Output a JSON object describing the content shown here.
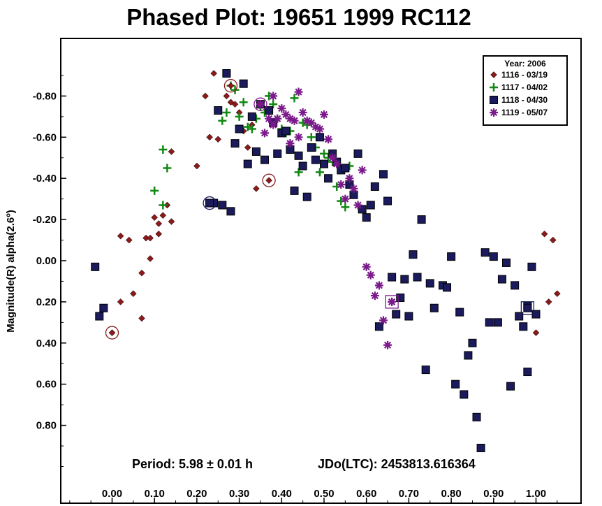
{
  "chart_data": {
    "type": "scatter",
    "title": "Phased Plot: 19651 1999 RC112",
    "xlabel": "",
    "ylabel": "Magnitude(R) alpha(2.6º)",
    "xlim": [
      -0.12,
      1.1
    ],
    "ylim": [
      -1.0,
      1.1
    ],
    "y_inverted": true,
    "grid": false,
    "legend_position": "top-right",
    "x_ticks": [
      0.0,
      0.1,
      0.2,
      0.3,
      0.4,
      0.5,
      0.6,
      0.7,
      0.8,
      0.9,
      1.0
    ],
    "x_tick_labels": [
      "0.00",
      "0.10",
      "0.20",
      "0.30",
      "0.40",
      "0.50",
      "0.60",
      "0.70",
      "0.80",
      "0.90",
      "1.00"
    ],
    "y_ticks": [
      -0.8,
      -0.6,
      -0.4,
      -0.2,
      0.0,
      0.2,
      0.4,
      0.6,
      0.8
    ],
    "y_tick_labels": [
      "-0.80",
      "-0.60",
      "-0.40",
      "-0.20",
      "0.00",
      "0.20",
      "0.40",
      "0.60",
      "0.80"
    ],
    "legend_title": "Year: 2006",
    "annotations": {
      "period": "Period: 5.98 ± 0.01 h",
      "epoch": "JDo(LTC): 2453813.616364"
    },
    "series": [
      {
        "name": "1116 - 03/19",
        "marker": "diamond",
        "color": "#8b1a1a",
        "points": [
          [
            0.0,
            0.35
          ],
          [
            0.02,
            -0.12
          ],
          [
            0.04,
            -0.1
          ],
          [
            0.02,
            0.2
          ],
          [
            0.05,
            0.16
          ],
          [
            0.07,
            0.06
          ],
          [
            0.07,
            0.28
          ],
          [
            0.08,
            -0.11
          ],
          [
            0.09,
            -0.11
          ],
          [
            0.09,
            -0.01
          ],
          [
            0.1,
            -0.21
          ],
          [
            0.11,
            -0.13
          ],
          [
            0.11,
            -0.18
          ],
          [
            0.12,
            -0.22
          ],
          [
            0.13,
            -0.27
          ],
          [
            0.14,
            -0.19
          ],
          [
            0.14,
            -0.53
          ],
          [
            0.2,
            -0.46
          ],
          [
            0.22,
            -0.8
          ],
          [
            0.23,
            -0.6
          ],
          [
            0.24,
            -0.91
          ],
          [
            0.25,
            -0.59
          ],
          [
            0.27,
            -0.8
          ],
          [
            0.28,
            -0.77
          ],
          [
            0.29,
            -0.76
          ],
          [
            0.3,
            -0.72
          ],
          [
            0.31,
            -0.63
          ],
          [
            0.32,
            -0.55
          ],
          [
            0.33,
            -0.66
          ],
          [
            0.34,
            -0.35
          ],
          [
            1.02,
            -0.13
          ],
          [
            1.03,
            0.2
          ],
          [
            1.04,
            -0.1
          ],
          [
            1.05,
            0.16
          ],
          [
            1.0,
            0.35
          ]
        ],
        "circled": [
          [
            0.0,
            0.35
          ],
          [
            0.28,
            -0.85
          ],
          [
            0.37,
            -0.39
          ]
        ]
      },
      {
        "name": "1117 - 04/02",
        "marker": "plus",
        "color": "#118811",
        "points": [
          [
            0.1,
            -0.34
          ],
          [
            0.12,
            -0.54
          ],
          [
            0.13,
            -0.45
          ],
          [
            0.12,
            -0.27
          ],
          [
            0.26,
            -0.68
          ],
          [
            0.27,
            -0.72
          ],
          [
            0.28,
            -0.85
          ],
          [
            0.29,
            -0.83
          ],
          [
            0.3,
            -0.7
          ],
          [
            0.31,
            -0.77
          ],
          [
            0.32,
            -0.65
          ],
          [
            0.33,
            -0.64
          ],
          [
            0.34,
            -0.69
          ],
          [
            0.35,
            -0.75
          ],
          [
            0.36,
            -0.72
          ],
          [
            0.37,
            -0.8
          ],
          [
            0.38,
            -0.76
          ],
          [
            0.39,
            -0.69
          ],
          [
            0.4,
            -0.64
          ],
          [
            0.41,
            -0.62
          ],
          [
            0.42,
            -0.63
          ],
          [
            0.43,
            -0.79
          ],
          [
            0.44,
            -0.43
          ],
          [
            0.45,
            -0.67
          ],
          [
            0.46,
            -0.66
          ],
          [
            0.47,
            -0.6
          ],
          [
            0.48,
            -0.55
          ],
          [
            0.49,
            -0.43
          ],
          [
            0.5,
            -0.52
          ],
          [
            0.51,
            -0.5
          ],
          [
            0.52,
            -0.48
          ],
          [
            0.53,
            -0.36
          ],
          [
            0.54,
            -0.29
          ],
          [
            0.55,
            -0.26
          ],
          [
            0.56,
            -0.46
          ]
        ]
      },
      {
        "name": "1118 - 04/30",
        "marker": "square",
        "color": "#1a1a5c",
        "points": [
          [
            -0.04,
            0.03
          ],
          [
            -0.03,
            0.27
          ],
          [
            -0.02,
            0.23
          ],
          [
            0.23,
            -0.28
          ],
          [
            0.24,
            -0.28
          ],
          [
            0.25,
            -0.73
          ],
          [
            0.26,
            -0.27
          ],
          [
            0.27,
            -0.91
          ],
          [
            0.28,
            -0.24
          ],
          [
            0.29,
            -0.57
          ],
          [
            0.3,
            -0.64
          ],
          [
            0.31,
            -0.86
          ],
          [
            0.32,
            -0.47
          ],
          [
            0.33,
            -0.7
          ],
          [
            0.34,
            -0.53
          ],
          [
            0.35,
            -0.76
          ],
          [
            0.36,
            -0.49
          ],
          [
            0.37,
            -0.73
          ],
          [
            0.38,
            -0.67
          ],
          [
            0.39,
            -0.52
          ],
          [
            0.4,
            -0.62
          ],
          [
            0.41,
            -0.63
          ],
          [
            0.42,
            -0.54
          ],
          [
            0.43,
            -0.34
          ],
          [
            0.44,
            -0.51
          ],
          [
            0.45,
            -0.46
          ],
          [
            0.46,
            -0.31
          ],
          [
            0.47,
            -0.55
          ],
          [
            0.48,
            -0.49
          ],
          [
            0.49,
            -0.6
          ],
          [
            0.5,
            -0.47
          ],
          [
            0.51,
            -0.4
          ],
          [
            0.52,
            -0.52
          ],
          [
            0.53,
            -0.48
          ],
          [
            0.54,
            -0.44
          ],
          [
            0.55,
            -0.45
          ],
          [
            0.56,
            -0.37
          ],
          [
            0.57,
            -0.32
          ],
          [
            0.58,
            -0.52
          ],
          [
            0.59,
            -0.25
          ],
          [
            0.6,
            -0.21
          ],
          [
            0.61,
            -0.27
          ],
          [
            0.62,
            -0.36
          ],
          [
            0.63,
            0.32
          ],
          [
            0.64,
            -0.42
          ],
          [
            0.65,
            -0.29
          ],
          [
            0.66,
            0.08
          ],
          [
            0.67,
            0.26
          ],
          [
            0.68,
            0.18
          ],
          [
            0.69,
            0.09
          ],
          [
            0.7,
            0.27
          ],
          [
            0.71,
            -0.03
          ],
          [
            0.72,
            0.08
          ],
          [
            0.73,
            -0.2
          ],
          [
            0.74,
            0.53
          ],
          [
            0.75,
            0.11
          ],
          [
            0.76,
            0.23
          ],
          [
            0.78,
            0.12
          ],
          [
            0.79,
            0.13
          ],
          [
            0.8,
            -0.02
          ],
          [
            0.81,
            0.6
          ],
          [
            0.82,
            0.25
          ],
          [
            0.83,
            0.65
          ],
          [
            0.84,
            0.46
          ],
          [
            0.85,
            0.4
          ],
          [
            0.86,
            0.76
          ],
          [
            0.87,
            0.91
          ],
          [
            0.88,
            -0.04
          ],
          [
            0.89,
            0.3
          ],
          [
            0.9,
            -0.02
          ],
          [
            0.91,
            0.3
          ],
          [
            0.92,
            0.09
          ],
          [
            0.93,
            0.01
          ],
          [
            0.94,
            0.61
          ],
          [
            0.95,
            0.12
          ],
          [
            0.96,
            0.27
          ],
          [
            0.97,
            0.32
          ],
          [
            0.98,
            0.54
          ],
          [
            0.99,
            0.03
          ],
          [
            1.0,
            0.26
          ],
          [
            0.98,
            0.22
          ]
        ],
        "circled": [
          [
            0.23,
            -0.28
          ]
        ],
        "boxed": [
          [
            0.98,
            0.23
          ]
        ]
      },
      {
        "name": "1119 - 05/07",
        "marker": "asterisk",
        "color": "#7b1a8b",
        "points": [
          [
            0.35,
            -0.76
          ],
          [
            0.36,
            -0.62
          ],
          [
            0.37,
            -0.69
          ],
          [
            0.38,
            -0.8
          ],
          [
            0.38,
            -0.66
          ],
          [
            0.39,
            -0.69
          ],
          [
            0.4,
            -0.74
          ],
          [
            0.41,
            -0.71
          ],
          [
            0.42,
            -0.69
          ],
          [
            0.42,
            -0.57
          ],
          [
            0.43,
            -0.68
          ],
          [
            0.44,
            -0.6
          ],
          [
            0.44,
            -0.82
          ],
          [
            0.45,
            -0.72
          ],
          [
            0.46,
            -0.68
          ],
          [
            0.47,
            -0.67
          ],
          [
            0.48,
            -0.65
          ],
          [
            0.49,
            -0.64
          ],
          [
            0.5,
            -0.71
          ],
          [
            0.51,
            -0.59
          ],
          [
            0.52,
            -0.5
          ],
          [
            0.53,
            -0.47
          ],
          [
            0.54,
            -0.37
          ],
          [
            0.55,
            -0.3
          ],
          [
            0.56,
            -0.4
          ],
          [
            0.57,
            -0.35
          ],
          [
            0.58,
            -0.27
          ],
          [
            0.59,
            -0.44
          ],
          [
            0.6,
            0.03
          ],
          [
            0.61,
            0.07
          ],
          [
            0.62,
            0.17
          ],
          [
            0.63,
            0.12
          ],
          [
            0.64,
            0.29
          ],
          [
            0.65,
            0.41
          ],
          [
            0.66,
            0.2
          ]
        ],
        "circled": [
          [
            0.35,
            -0.76
          ]
        ],
        "boxed": [
          [
            0.66,
            0.2
          ]
        ]
      }
    ]
  }
}
